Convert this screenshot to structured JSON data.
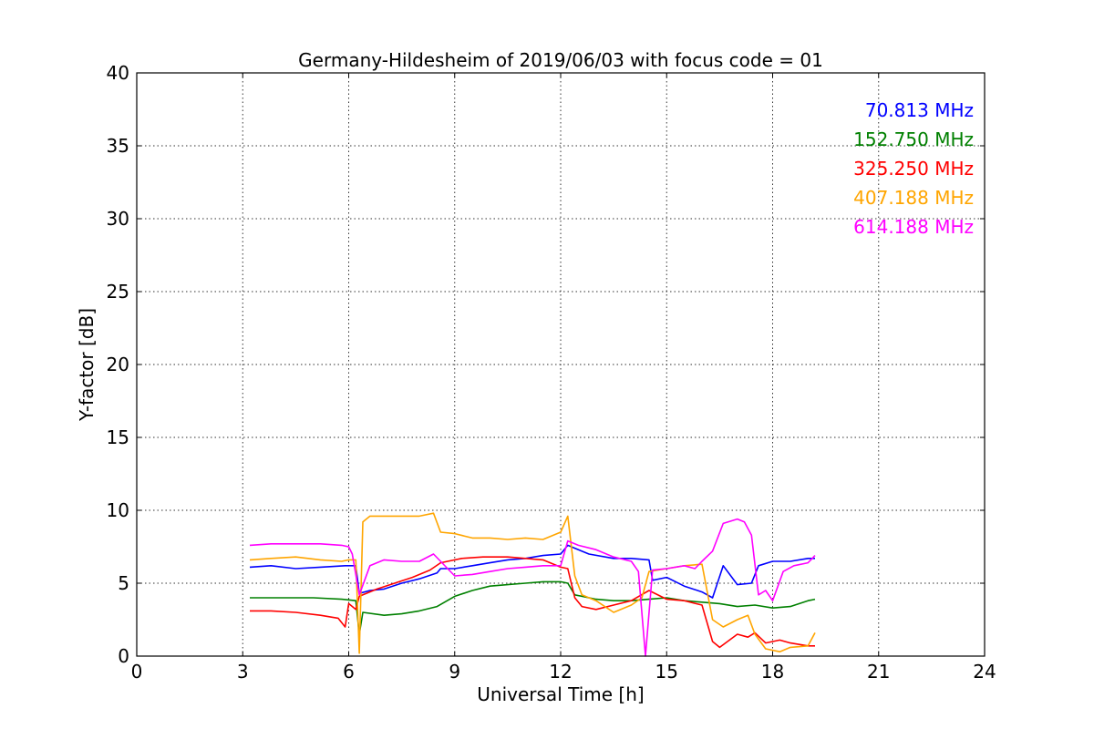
{
  "chart_data": {
    "type": "line",
    "title": "Germany-Hildesheim of 2019/06/03 with focus code = 01",
    "xlabel": "Universal Time [h]",
    "ylabel": "Y-factor [dB]",
    "xlim": [
      0,
      24
    ],
    "ylim": [
      0,
      40
    ],
    "xticks": [
      0,
      3,
      6,
      9,
      12,
      15,
      18,
      21,
      24
    ],
    "yticks": [
      0,
      5,
      10,
      15,
      20,
      25,
      30,
      35,
      40
    ],
    "grid": true,
    "legend_position": "top-right",
    "series": [
      {
        "name": "70.813 MHz",
        "color": "#0000ff",
        "points": [
          [
            3.2,
            6.1
          ],
          [
            3.8,
            6.2
          ],
          [
            4.5,
            6.0
          ],
          [
            5.2,
            6.1
          ],
          [
            5.9,
            6.2
          ],
          [
            6.2,
            6.2
          ],
          [
            6.3,
            4.3
          ],
          [
            6.6,
            4.5
          ],
          [
            7.0,
            4.6
          ],
          [
            7.5,
            5.0
          ],
          [
            8.0,
            5.3
          ],
          [
            8.5,
            5.7
          ],
          [
            8.6,
            6.0
          ],
          [
            9.0,
            6.0
          ],
          [
            9.5,
            6.2
          ],
          [
            10.0,
            6.4
          ],
          [
            10.5,
            6.6
          ],
          [
            11.0,
            6.7
          ],
          [
            11.5,
            6.9
          ],
          [
            12.0,
            7.0
          ],
          [
            12.2,
            7.6
          ],
          [
            12.4,
            7.4
          ],
          [
            12.8,
            7.0
          ],
          [
            13.5,
            6.7
          ],
          [
            14.0,
            6.7
          ],
          [
            14.5,
            6.6
          ],
          [
            14.6,
            5.2
          ],
          [
            15.0,
            5.4
          ],
          [
            15.5,
            4.8
          ],
          [
            16.0,
            4.4
          ],
          [
            16.3,
            4.0
          ],
          [
            16.6,
            6.2
          ],
          [
            17.0,
            4.9
          ],
          [
            17.4,
            5.0
          ],
          [
            17.6,
            6.2
          ],
          [
            18.0,
            6.5
          ],
          [
            18.5,
            6.5
          ],
          [
            19.0,
            6.7
          ],
          [
            19.2,
            6.7
          ]
        ]
      },
      {
        "name": "152.750 MHz",
        "color": "#008000",
        "points": [
          [
            3.2,
            4.0
          ],
          [
            4.0,
            4.0
          ],
          [
            5.0,
            4.0
          ],
          [
            5.8,
            3.9
          ],
          [
            6.2,
            3.8
          ],
          [
            6.3,
            1.5
          ],
          [
            6.4,
            3.0
          ],
          [
            7.0,
            2.8
          ],
          [
            7.5,
            2.9
          ],
          [
            8.0,
            3.1
          ],
          [
            8.5,
            3.4
          ],
          [
            9.0,
            4.1
          ],
          [
            9.5,
            4.5
          ],
          [
            10.0,
            4.8
          ],
          [
            10.5,
            4.9
          ],
          [
            11.0,
            5.0
          ],
          [
            11.5,
            5.1
          ],
          [
            12.0,
            5.1
          ],
          [
            12.2,
            5.0
          ],
          [
            12.4,
            4.2
          ],
          [
            13.0,
            3.9
          ],
          [
            13.5,
            3.8
          ],
          [
            14.0,
            3.8
          ],
          [
            14.5,
            3.9
          ],
          [
            15.0,
            4.0
          ],
          [
            15.5,
            3.8
          ],
          [
            16.0,
            3.7
          ],
          [
            16.5,
            3.6
          ],
          [
            17.0,
            3.4
          ],
          [
            17.5,
            3.5
          ],
          [
            18.0,
            3.3
          ],
          [
            18.5,
            3.4
          ],
          [
            19.0,
            3.8
          ],
          [
            19.2,
            3.9
          ]
        ]
      },
      {
        "name": "325.250 MHz",
        "color": "#ff0000",
        "points": [
          [
            3.2,
            3.1
          ],
          [
            3.8,
            3.1
          ],
          [
            4.5,
            3.0
          ],
          [
            5.2,
            2.8
          ],
          [
            5.7,
            2.6
          ],
          [
            5.9,
            2.0
          ],
          [
            6.0,
            3.6
          ],
          [
            6.2,
            3.2
          ],
          [
            6.3,
            4.1
          ],
          [
            6.8,
            4.6
          ],
          [
            7.3,
            5.0
          ],
          [
            7.8,
            5.4
          ],
          [
            8.3,
            5.9
          ],
          [
            8.6,
            6.4
          ],
          [
            8.8,
            6.5
          ],
          [
            9.2,
            6.7
          ],
          [
            9.8,
            6.8
          ],
          [
            10.5,
            6.8
          ],
          [
            11.0,
            6.7
          ],
          [
            11.5,
            6.6
          ],
          [
            12.0,
            6.1
          ],
          [
            12.2,
            6.0
          ],
          [
            12.4,
            4.0
          ],
          [
            12.6,
            3.4
          ],
          [
            13.0,
            3.2
          ],
          [
            13.5,
            3.5
          ],
          [
            14.0,
            3.8
          ],
          [
            14.5,
            4.5
          ],
          [
            15.0,
            3.9
          ],
          [
            15.5,
            3.8
          ],
          [
            16.0,
            3.5
          ],
          [
            16.3,
            1.0
          ],
          [
            16.5,
            0.6
          ],
          [
            17.0,
            1.5
          ],
          [
            17.3,
            1.3
          ],
          [
            17.5,
            1.6
          ],
          [
            17.8,
            0.9
          ],
          [
            18.2,
            1.1
          ],
          [
            18.5,
            0.9
          ],
          [
            19.0,
            0.7
          ],
          [
            19.2,
            0.7
          ]
        ]
      },
      {
        "name": "407.188 MHz",
        "color": "#ffa500",
        "points": [
          [
            3.2,
            6.6
          ],
          [
            3.8,
            6.7
          ],
          [
            4.5,
            6.8
          ],
          [
            5.2,
            6.6
          ],
          [
            5.8,
            6.5
          ],
          [
            6.0,
            6.6
          ],
          [
            6.2,
            6.6
          ],
          [
            6.3,
            0.2
          ],
          [
            6.4,
            9.2
          ],
          [
            6.6,
            9.6
          ],
          [
            7.0,
            9.6
          ],
          [
            7.5,
            9.6
          ],
          [
            8.0,
            9.6
          ],
          [
            8.4,
            9.8
          ],
          [
            8.6,
            8.5
          ],
          [
            9.0,
            8.4
          ],
          [
            9.5,
            8.1
          ],
          [
            10.0,
            8.1
          ],
          [
            10.5,
            8.0
          ],
          [
            11.0,
            8.1
          ],
          [
            11.5,
            8.0
          ],
          [
            12.0,
            8.5
          ],
          [
            12.2,
            9.6
          ],
          [
            12.4,
            5.5
          ],
          [
            12.6,
            4.2
          ],
          [
            13.0,
            3.8
          ],
          [
            13.5,
            3.0
          ],
          [
            14.0,
            3.5
          ],
          [
            14.3,
            4.0
          ],
          [
            14.5,
            5.8
          ],
          [
            15.0,
            6.0
          ],
          [
            15.5,
            6.2
          ],
          [
            16.0,
            6.3
          ],
          [
            16.3,
            2.5
          ],
          [
            16.6,
            2.0
          ],
          [
            17.0,
            2.5
          ],
          [
            17.3,
            2.8
          ],
          [
            17.5,
            1.5
          ],
          [
            17.8,
            0.5
          ],
          [
            18.2,
            0.3
          ],
          [
            18.5,
            0.6
          ],
          [
            19.0,
            0.7
          ],
          [
            19.2,
            1.6
          ]
        ]
      },
      {
        "name": "614.188 MHz",
        "color": "#ff00ff",
        "points": [
          [
            3.2,
            7.6
          ],
          [
            3.8,
            7.7
          ],
          [
            4.5,
            7.7
          ],
          [
            5.2,
            7.7
          ],
          [
            5.8,
            7.6
          ],
          [
            6.0,
            7.5
          ],
          [
            6.1,
            7.0
          ],
          [
            6.3,
            4.2
          ],
          [
            6.6,
            6.2
          ],
          [
            7.0,
            6.6
          ],
          [
            7.5,
            6.5
          ],
          [
            8.0,
            6.5
          ],
          [
            8.4,
            7.0
          ],
          [
            8.6,
            6.5
          ],
          [
            8.8,
            6.0
          ],
          [
            9.0,
            5.5
          ],
          [
            9.5,
            5.6
          ],
          [
            10.0,
            5.8
          ],
          [
            10.5,
            6.0
          ],
          [
            11.0,
            6.1
          ],
          [
            11.5,
            6.2
          ],
          [
            12.0,
            6.2
          ],
          [
            12.2,
            7.9
          ],
          [
            12.5,
            7.6
          ],
          [
            13.0,
            7.3
          ],
          [
            13.5,
            6.8
          ],
          [
            14.0,
            6.5
          ],
          [
            14.2,
            5.8
          ],
          [
            14.4,
            0.0
          ],
          [
            14.6,
            5.9
          ],
          [
            15.0,
            6.0
          ],
          [
            15.5,
            6.2
          ],
          [
            15.8,
            6.0
          ],
          [
            16.0,
            6.5
          ],
          [
            16.3,
            7.2
          ],
          [
            16.6,
            9.1
          ],
          [
            17.0,
            9.4
          ],
          [
            17.2,
            9.2
          ],
          [
            17.4,
            8.3
          ],
          [
            17.6,
            4.2
          ],
          [
            17.8,
            4.5
          ],
          [
            18.0,
            3.8
          ],
          [
            18.3,
            5.8
          ],
          [
            18.6,
            6.2
          ],
          [
            19.0,
            6.4
          ],
          [
            19.2,
            6.9
          ]
        ]
      }
    ]
  }
}
